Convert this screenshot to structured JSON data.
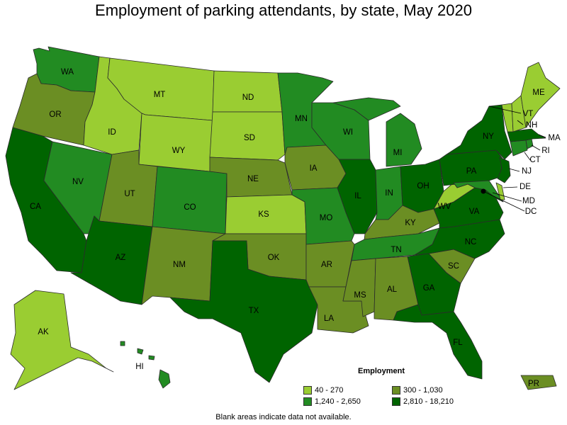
{
  "title": "Employment of parking attendants, by state, May 2020",
  "legend": {
    "title": "Employment",
    "items": [
      {
        "label": "40 - 270",
        "color": "#9acd32"
      },
      {
        "label": "300 - 1,030",
        "color": "#6b8e23"
      },
      {
        "label": "1,240 - 2,650",
        "color": "#228b22"
      },
      {
        "label": "2,810 - 18,210",
        "color": "#006400"
      }
    ]
  },
  "footnote": "Blank areas indicate data not available.",
  "states": [
    {
      "abbr": "WA",
      "class": 2
    },
    {
      "abbr": "OR",
      "class": 1
    },
    {
      "abbr": "CA",
      "class": 3
    },
    {
      "abbr": "NV",
      "class": 2
    },
    {
      "abbr": "ID",
      "class": 0
    },
    {
      "abbr": "MT",
      "class": 0
    },
    {
      "abbr": "WY",
      "class": 0
    },
    {
      "abbr": "UT",
      "class": 1
    },
    {
      "abbr": "AZ",
      "class": 3
    },
    {
      "abbr": "CO",
      "class": 2
    },
    {
      "abbr": "NM",
      "class": 1
    },
    {
      "abbr": "ND",
      "class": 0
    },
    {
      "abbr": "SD",
      "class": 0
    },
    {
      "abbr": "NE",
      "class": 1
    },
    {
      "abbr": "KS",
      "class": 0
    },
    {
      "abbr": "OK",
      "class": 1
    },
    {
      "abbr": "TX",
      "class": 3
    },
    {
      "abbr": "MN",
      "class": 2
    },
    {
      "abbr": "IA",
      "class": 1
    },
    {
      "abbr": "MO",
      "class": 2
    },
    {
      "abbr": "AR",
      "class": 1
    },
    {
      "abbr": "LA",
      "class": 1
    },
    {
      "abbr": "WI",
      "class": 2
    },
    {
      "abbr": "IL",
      "class": 3
    },
    {
      "abbr": "MI",
      "class": 2
    },
    {
      "abbr": "IN",
      "class": 2
    },
    {
      "abbr": "OH",
      "class": 3
    },
    {
      "abbr": "KY",
      "class": 1
    },
    {
      "abbr": "TN",
      "class": 2
    },
    {
      "abbr": "MS",
      "class": 1
    },
    {
      "abbr": "AL",
      "class": 1
    },
    {
      "abbr": "GA",
      "class": 3
    },
    {
      "abbr": "FL",
      "class": 3
    },
    {
      "abbr": "SC",
      "class": 1
    },
    {
      "abbr": "NC",
      "class": 3
    },
    {
      "abbr": "VA",
      "class": 3
    },
    {
      "abbr": "WV",
      "class": 0
    },
    {
      "abbr": "PA",
      "class": 3
    },
    {
      "abbr": "NY",
      "class": 3
    },
    {
      "abbr": "ME",
      "class": 0
    },
    {
      "abbr": "VT",
      "class": 0
    },
    {
      "abbr": "NH",
      "class": 0
    },
    {
      "abbr": "MA",
      "class": 3
    },
    {
      "abbr": "RI",
      "class": 2
    },
    {
      "abbr": "CT",
      "class": 2
    },
    {
      "abbr": "NJ",
      "class": 3
    },
    {
      "abbr": "DE",
      "class": 0
    },
    {
      "abbr": "MD",
      "class": 2
    },
    {
      "abbr": "DC",
      "class": 3
    },
    {
      "abbr": "AK",
      "class": 0
    },
    {
      "abbr": "HI",
      "class": 2
    },
    {
      "abbr": "PR",
      "class": 1
    }
  ]
}
